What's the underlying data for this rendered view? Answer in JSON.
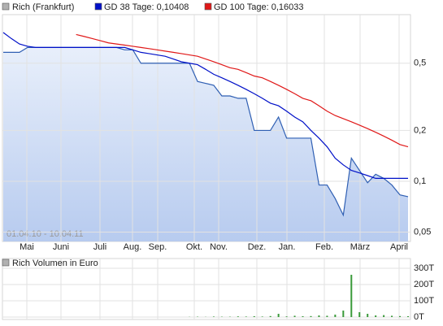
{
  "chart_data": [
    {
      "type": "line",
      "annotation": "01.04.10 - 10.04.11",
      "xtick_labels": [
        "Mai",
        "Juni",
        "Juli",
        "Aug.",
        "Sep.",
        "Okt.",
        "Nov.",
        "Dez.",
        "Jan.",
        "Feb.",
        "März",
        "April"
      ],
      "log_scale": true,
      "grid": true,
      "ylim": [
        0.044,
        0.97
      ],
      "yticks": [
        {
          "value": 0.05,
          "label": "0,05"
        },
        {
          "value": 0.1,
          "label": "0,1"
        },
        {
          "value": 0.2,
          "label": "0,2"
        },
        {
          "value": 0.5,
          "label": "0,5"
        }
      ],
      "series": [
        {
          "name": "Rich (Frankfurt)",
          "color": "#2f5fb3",
          "area": true,
          "values": [
            0.58,
            0.58,
            0.58,
            0.62,
            0.62,
            0.62,
            0.62,
            0.62,
            0.62,
            0.62,
            0.62,
            0.62,
            0.62,
            0.62,
            0.62,
            0.6,
            0.6,
            0.5,
            0.5,
            0.5,
            0.5,
            0.5,
            0.5,
            0.5,
            0.39,
            0.38,
            0.37,
            0.32,
            0.32,
            0.31,
            0.31,
            0.2,
            0.2,
            0.2,
            0.24,
            0.18,
            0.18,
            0.18,
            0.18,
            0.095,
            0.095,
            0.079,
            0.063,
            0.137,
            0.116,
            0.098,
            0.11,
            0.104,
            0.095,
            0.083,
            0.081
          ]
        },
        {
          "name": "GD 38 Tage: 0,10408",
          "color": "#0010c8",
          "values": [
            0.76,
            0.7,
            0.65,
            0.63,
            0.62,
            0.62,
            0.62,
            0.62,
            0.62,
            0.62,
            0.62,
            0.62,
            0.62,
            0.62,
            0.62,
            0.62,
            0.6,
            0.58,
            0.57,
            0.56,
            0.55,
            0.53,
            0.51,
            0.5,
            0.49,
            0.46,
            0.43,
            0.41,
            0.39,
            0.37,
            0.35,
            0.33,
            0.31,
            0.29,
            0.28,
            0.26,
            0.24,
            0.225,
            0.2,
            0.18,
            0.16,
            0.137,
            0.125,
            0.116,
            0.112,
            0.108,
            0.104,
            0.104,
            0.104,
            0.104,
            0.104
          ]
        },
        {
          "name": "GD 100 Tage: 0,16033",
          "color": "#e01818",
          "values": [
            null,
            null,
            null,
            null,
            null,
            null,
            null,
            null,
            null,
            0.74,
            0.72,
            0.7,
            0.68,
            0.66,
            0.65,
            0.64,
            0.63,
            0.62,
            0.61,
            0.6,
            0.59,
            0.58,
            0.57,
            0.56,
            0.55,
            0.53,
            0.51,
            0.49,
            0.47,
            0.46,
            0.44,
            0.42,
            0.41,
            0.39,
            0.37,
            0.35,
            0.33,
            0.31,
            0.3,
            0.28,
            0.26,
            0.245,
            0.235,
            0.225,
            0.215,
            0.205,
            0.195,
            0.185,
            0.175,
            0.165,
            0.16
          ]
        }
      ]
    },
    {
      "type": "bar",
      "grid": true,
      "ylim": [
        0,
        360
      ],
      "yticks": [
        {
          "value": 0,
          "label": "0T"
        },
        {
          "value": 100,
          "label": "100T"
        },
        {
          "value": 200,
          "label": "200T"
        },
        {
          "value": 300,
          "label": "300T"
        }
      ],
      "series": [
        {
          "name": "Rich Volumen in Euro",
          "color": "#3a9a3a",
          "values": [
            0,
            0,
            0,
            0,
            0,
            0,
            0,
            0,
            0,
            0,
            0,
            0,
            0,
            0,
            0,
            0,
            0,
            0,
            0,
            0,
            0,
            0,
            0,
            1,
            2,
            1,
            3,
            2,
            2,
            4,
            3,
            5,
            3,
            6,
            20,
            4,
            8,
            5,
            6,
            10,
            8,
            15,
            40,
            260,
            30,
            20,
            10,
            12,
            8,
            6,
            5
          ]
        }
      ]
    }
  ]
}
